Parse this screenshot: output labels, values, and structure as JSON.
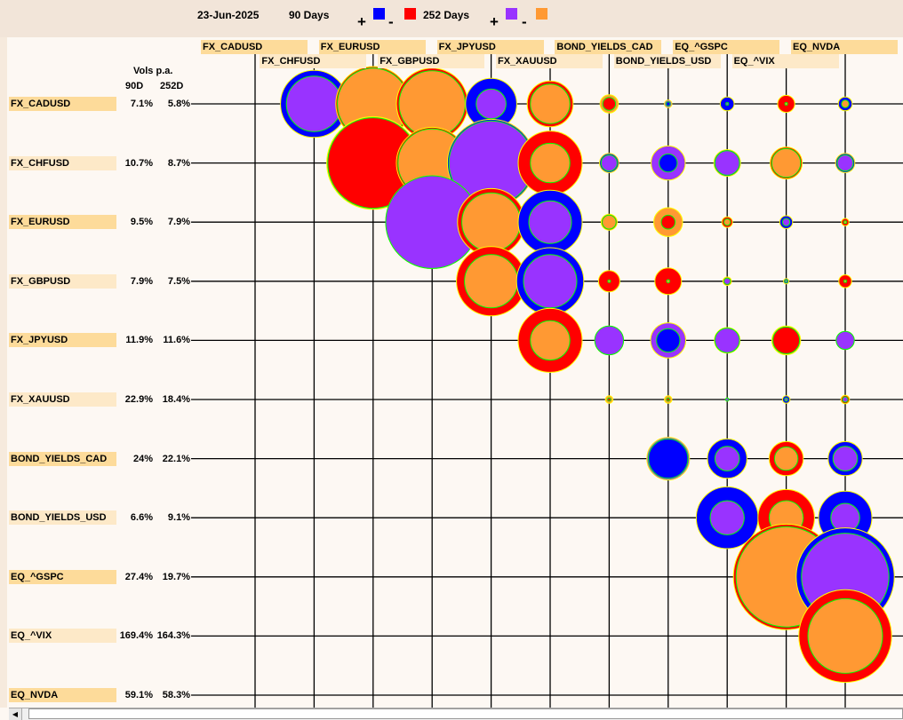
{
  "header": {
    "date": "23-Jun-2025",
    "label_90": "90 Days",
    "label_252": "252 Days",
    "plus": "+",
    "minus": "-"
  },
  "colors": {
    "pos_90": "#0000ff",
    "neg_90": "#ff0000",
    "pos_252": "#9933ff",
    "neg_252": "#ff9933",
    "inner_border": "#00ff00",
    "outer_border": "#ffff00"
  },
  "vols_header": {
    "title": "Vols p.a.",
    "col_90": "90D",
    "col_252": "252D"
  },
  "assets": [
    {
      "name": "FX_CADUSD",
      "vol90": "7.1%",
      "vol252": "5.8%"
    },
    {
      "name": "FX_CHFUSD",
      "vol90": "10.7%",
      "vol252": "8.7%"
    },
    {
      "name": "FX_EURUSD",
      "vol90": "9.5%",
      "vol252": "7.9%"
    },
    {
      "name": "FX_GBPUSD",
      "vol90": "7.9%",
      "vol252": "7.5%"
    },
    {
      "name": "FX_JPYUSD",
      "vol90": "11.9%",
      "vol252": "11.6%"
    },
    {
      "name": "FX_XAUUSD",
      "vol90": "22.9%",
      "vol252": "18.4%"
    },
    {
      "name": "BOND_YIELDS_CAD",
      "vol90": "24%",
      "vol252": "22.1%"
    },
    {
      "name": "BOND_YIELDS_USD",
      "vol90": "6.6%",
      "vol252": "9.1%"
    },
    {
      "name": "EQ_^GSPC",
      "vol90": "27.4%",
      "vol252": "19.7%"
    },
    {
      "name": "EQ_^VIX",
      "vol90": "169.4%",
      "vol252": "164.3%"
    },
    {
      "name": "EQ_NVDA",
      "vol90": "59.1%",
      "vol252": "58.3%"
    }
  ],
  "chart_data": {
    "type": "bubble-matrix",
    "note_encoding": "upper triangle; ring = 90-day correlation (blue +, red -), disc = 252-day correlation (purple +, orange -); size proportional to |correlation|",
    "pairs": [
      {
        "row": 0,
        "col": 1,
        "d90": 0.63,
        "d252": 0.52
      },
      {
        "row": 0,
        "col": 2,
        "d90": -0.7,
        "d252": -0.67
      },
      {
        "row": 0,
        "col": 3,
        "d90": -0.67,
        "d252": -0.62
      },
      {
        "row": 0,
        "col": 4,
        "d90": 0.48,
        "d252": 0.28
      },
      {
        "row": 0,
        "col": 5,
        "d90": -0.43,
        "d252": -0.37
      },
      {
        "row": 0,
        "col": 6,
        "d90": -0.12,
        "d252": -0.17
      },
      {
        "row": 0,
        "col": 7,
        "d90": 0.04,
        "d252": 0.07
      },
      {
        "row": 0,
        "col": 8,
        "d90": 0.13,
        "d252": 0.01
      },
      {
        "row": 0,
        "col": 9,
        "d90": -0.16,
        "d252": -0.01
      },
      {
        "row": 0,
        "col": 10,
        "d90": 0.13,
        "d252": -0.07
      },
      {
        "row": 1,
        "col": 2,
        "d90": -0.85,
        "d252": -0.87
      },
      {
        "row": 1,
        "col": 3,
        "d90": -0.67,
        "d252": -0.64
      },
      {
        "row": 1,
        "col": 4,
        "d90": 0.82,
        "d252": 0.79
      },
      {
        "row": 1,
        "col": 5,
        "d90": -0.6,
        "d252": -0.37
      },
      {
        "row": 1,
        "col": 6,
        "d90": 0.18,
        "d252": 0.15
      },
      {
        "row": 1,
        "col": 7,
        "d90": 0.17,
        "d252": 0.32
      },
      {
        "row": 1,
        "col": 8,
        "d90": 0.25,
        "d252": 0.23
      },
      {
        "row": 1,
        "col": 9,
        "d90": -0.3,
        "d252": -0.27
      },
      {
        "row": 1,
        "col": 10,
        "d90": 0.18,
        "d252": 0.15
      },
      {
        "row": 2,
        "col": 3,
        "d90": 0.87,
        "d252": 0.87
      },
      {
        "row": 2,
        "col": 4,
        "d90": -0.63,
        "d252": -0.55
      },
      {
        "row": 2,
        "col": 5,
        "d90": 0.6,
        "d252": 0.4
      },
      {
        "row": 2,
        "col": 6,
        "d90": -0.15,
        "d252": -0.13
      },
      {
        "row": 2,
        "col": 7,
        "d90": -0.13,
        "d252": -0.27
      },
      {
        "row": 2,
        "col": 8,
        "d90": -0.1,
        "d252": -0.06
      },
      {
        "row": 2,
        "col": 9,
        "d90": 0.12,
        "d252": 0.07
      },
      {
        "row": 2,
        "col": 10,
        "d90": -0.07,
        "d252": -0.02
      },
      {
        "row": 3,
        "col": 4,
        "d90": -0.65,
        "d252": -0.5
      },
      {
        "row": 3,
        "col": 5,
        "d90": 0.63,
        "d252": 0.5
      },
      {
        "row": 3,
        "col": 6,
        "d90": -0.2,
        "d252": -0.01
      },
      {
        "row": 3,
        "col": 7,
        "d90": -0.25,
        "d252": -0.03
      },
      {
        "row": 3,
        "col": 8,
        "d90": -0.08,
        "d252": 0.06
      },
      {
        "row": 3,
        "col": 9,
        "d90": 0.05,
        "d252": 0.02
      },
      {
        "row": 3,
        "col": 10,
        "d90": -0.12,
        "d252": -0.02
      },
      {
        "row": 4,
        "col": 5,
        "d90": -0.6,
        "d252": -0.37
      },
      {
        "row": 4,
        "col": 6,
        "d90": 0.27,
        "d252": 0.27
      },
      {
        "row": 4,
        "col": 7,
        "d90": 0.22,
        "d252": 0.33
      },
      {
        "row": 4,
        "col": 8,
        "d90": 0.24,
        "d252": 0.23
      },
      {
        "row": 4,
        "col": 9,
        "d90": -0.25,
        "d252": -0.27
      },
      {
        "row": 4,
        "col": 10,
        "d90": 0.17,
        "d252": 0.17
      },
      {
        "row": 5,
        "col": 6,
        "d90": -0.03,
        "d252": -0.07
      },
      {
        "row": 5,
        "col": 7,
        "d90": -0.03,
        "d252": -0.07
      },
      {
        "row": 5,
        "col": 8,
        "d90": 0.03,
        "d252": 0.03
      },
      {
        "row": 5,
        "col": 9,
        "d90": 0.07,
        "d252": 0.03
      },
      {
        "row": 5,
        "col": 10,
        "d90": -0.08,
        "d252": 0.05
      },
      {
        "row": 6,
        "col": 7,
        "d90": 0.37,
        "d252": 0.4
      },
      {
        "row": 6,
        "col": 8,
        "d90": 0.37,
        "d252": 0.23
      },
      {
        "row": 6,
        "col": 9,
        "d90": -0.32,
        "d252": -0.22
      },
      {
        "row": 6,
        "col": 10,
        "d90": 0.32,
        "d252": 0.23
      },
      {
        "row": 7,
        "col": 8,
        "d90": 0.58,
        "d252": 0.32
      },
      {
        "row": 7,
        "col": 9,
        "d90": -0.53,
        "d252": -0.32
      },
      {
        "row": 7,
        "col": 10,
        "d90": 0.5,
        "d252": 0.27
      },
      {
        "row": 8,
        "col": 9,
        "d90": -0.99,
        "d252": -0.94
      },
      {
        "row": 8,
        "col": 10,
        "d90": 0.92,
        "d252": 0.82
      },
      {
        "row": 9,
        "col": 10,
        "d90": -0.87,
        "d252": -0.7
      }
    ]
  }
}
